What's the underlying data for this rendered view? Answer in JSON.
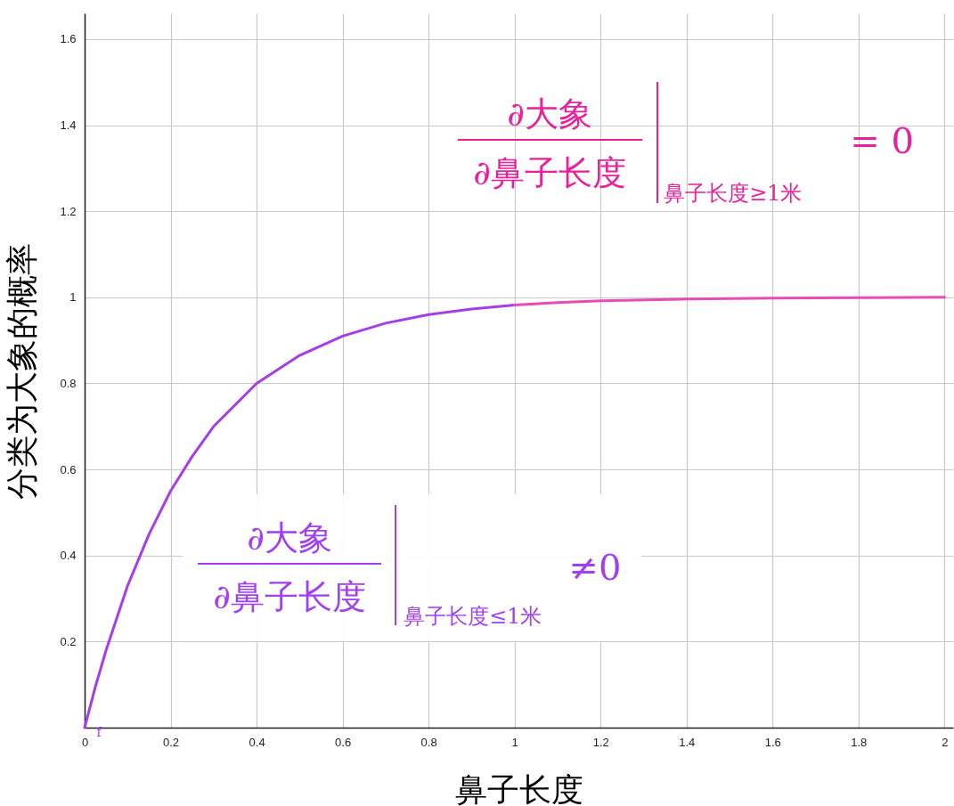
{
  "chart_data": {
    "type": "line",
    "xlabel": "鼻子长度",
    "ylabel": "分类为大象的概率",
    "xlim": [
      0,
      2.02
    ],
    "ylim": [
      0,
      1.66
    ],
    "xticks": [
      0,
      0.2,
      0.4,
      0.6,
      0.8,
      1,
      1.2,
      1.4,
      1.6,
      1.8,
      2
    ],
    "yticks": [
      0.2,
      0.4,
      0.6,
      0.8,
      1,
      1.2,
      1.4,
      1.6
    ],
    "grid": true,
    "series": [
      {
        "color": "#a63ee8",
        "x": [
          0,
          0.025,
          0.05,
          0.1,
          0.15,
          0.2,
          0.25,
          0.3,
          0.4,
          0.5,
          0.6,
          0.7,
          0.8,
          0.9,
          1
        ],
        "values": [
          0,
          0.095,
          0.18,
          0.33,
          0.45,
          0.55,
          0.63,
          0.7,
          0.8,
          0.865,
          0.91,
          0.94,
          0.96,
          0.973,
          0.982
        ]
      },
      {
        "color": "#e84cb4",
        "x": [
          1,
          1.1,
          1.2,
          1.4,
          1.6,
          1.8,
          2
        ],
        "values": [
          0.982,
          0.988,
          0.992,
          0.996,
          0.998,
          0.999,
          1
        ]
      }
    ],
    "annotations": [
      "∂大象",
      "∂鼻子长度",
      "鼻子长度≥1米",
      "= 0",
      "∂大象",
      "∂鼻子长度",
      "鼻子长度≤1米",
      "≠0",
      "f"
    ]
  }
}
